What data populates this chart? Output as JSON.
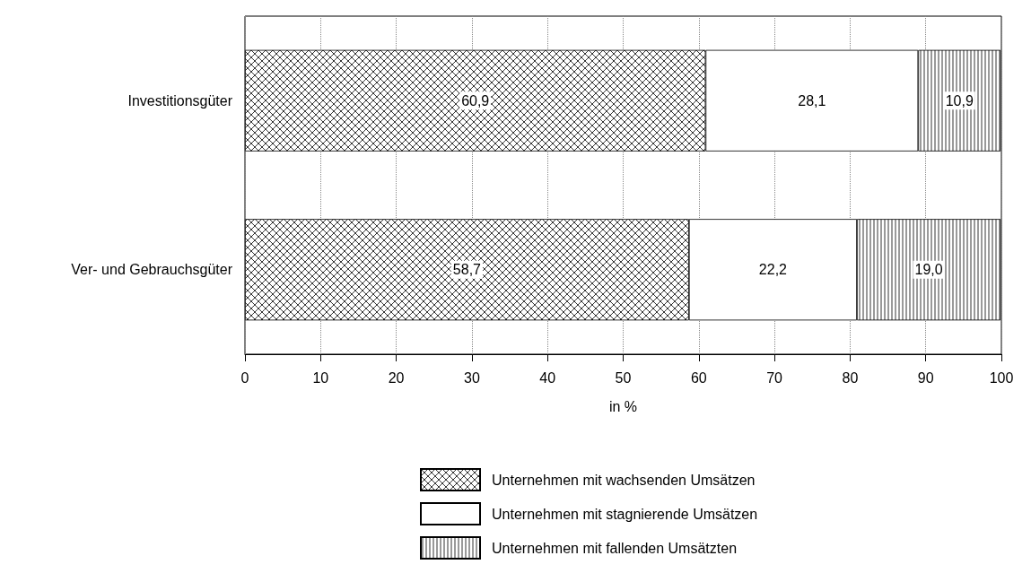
{
  "chart_data": {
    "type": "bar",
    "orientation": "horizontal",
    "stacked": true,
    "categories": [
      "Investitionsgüter",
      "Ver- und Gebrauchsgüter"
    ],
    "series": [
      {
        "name": "Unternehmen mit wachsenden Umsätzen",
        "color": "#000000",
        "values": [
          60.9,
          58.7
        ],
        "value_labels": [
          "60,9",
          "58,7"
        ]
      },
      {
        "name": "Unternehmen mit stagnierende Umsätzen",
        "color": "#ffffff",
        "values": [
          28.1,
          22.2
        ],
        "value_labels": [
          "28,1",
          "22,2"
        ]
      },
      {
        "name": "Unternehmen mit fallenden Umsätzten",
        "color": "#000000",
        "values": [
          10.9,
          19.0
        ],
        "value_labels": [
          "10,9",
          "19,0"
        ]
      }
    ],
    "xlabel": "in %",
    "xlim": [
      0,
      100
    ],
    "xticks": [
      0,
      10,
      20,
      30,
      40,
      50,
      60,
      70,
      80,
      90,
      100
    ],
    "grid": "x",
    "legend": "bottom"
  }
}
